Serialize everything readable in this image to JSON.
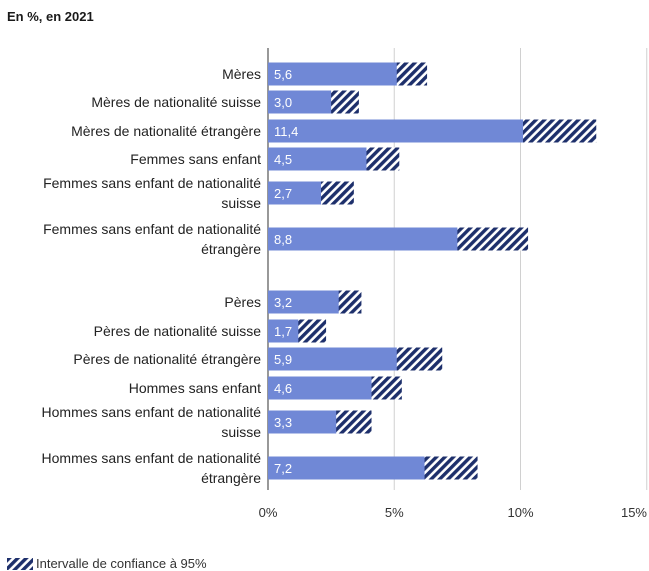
{
  "subtitle": "En %, en 2021",
  "legend_label": "Intervalle de confiance à 95%",
  "colors": {
    "bar": "#7088d6",
    "ci_dark": "#1d2f6b",
    "grid": "#d0d0d0",
    "axis": "#555555",
    "value_text": "#ffffff"
  },
  "chart_data": {
    "type": "bar",
    "orientation": "horizontal",
    "xlim": [
      0,
      15
    ],
    "xticks": [
      0,
      5,
      10,
      15
    ],
    "xtick_labels": [
      "0%",
      "5%",
      "10%",
      "15%"
    ],
    "grid": true,
    "legend_position": "bottom-left",
    "categories": [
      [
        "Mères"
      ],
      [
        "Mères de nationalité suisse"
      ],
      [
        "Mères de nationalité étrangère"
      ],
      [
        "Femmes sans enfant"
      ],
      [
        "Femmes sans enfant de nationalité",
        "suisse"
      ],
      [
        "Femmes sans enfant de nationalité",
        "étrangère"
      ],
      [
        "Pères"
      ],
      [
        "Pères de nationalité suisse"
      ],
      [
        "Pères de nationalité étrangère"
      ],
      [
        "Hommes sans enfant"
      ],
      [
        "Hommes sans enfant de nationalité",
        "suisse"
      ],
      [
        "Hommes sans enfant de nationalité",
        "étrangère"
      ]
    ],
    "values": [
      5.6,
      3.0,
      11.4,
      4.5,
      2.7,
      8.8,
      3.2,
      1.7,
      5.9,
      4.6,
      3.3,
      7.2
    ],
    "value_labels": [
      "5,6",
      "3,0",
      "11,4",
      "4,5",
      "2,7",
      "8,8",
      "3,2",
      "1,7",
      "5,9",
      "4,6",
      "3,3",
      "7,2"
    ],
    "ci_low": [
      5.1,
      2.5,
      10.1,
      3.9,
      2.1,
      7.5,
      2.8,
      1.2,
      5.1,
      4.1,
      2.7,
      6.2
    ],
    "ci_high": [
      6.3,
      3.6,
      13.0,
      5.2,
      3.4,
      10.3,
      3.7,
      2.3,
      6.9,
      5.3,
      4.1,
      8.3
    ],
    "series": [
      {
        "values": [
          5.6,
          3.0,
          11.4,
          4.5,
          2.7,
          8.8,
          3.2,
          1.7,
          5.9,
          4.6,
          3.3,
          7.2
        ]
      }
    ]
  }
}
